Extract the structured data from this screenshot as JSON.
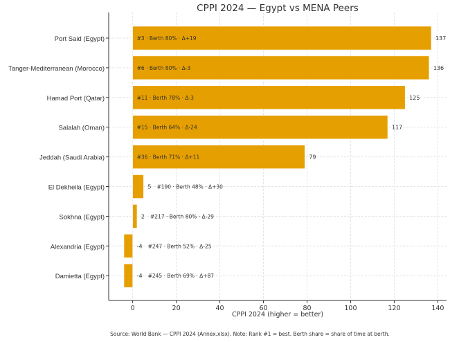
{
  "chart_data": {
    "type": "bar",
    "orientation": "horizontal",
    "title": "CPPI 2024 — Egypt vs MENA Peers",
    "xlabel": "CPPI 2024 (higher = better)",
    "ylabel": "",
    "xlim": [
      -11,
      144
    ],
    "xticks": [
      0,
      20,
      40,
      60,
      80,
      100,
      120,
      140
    ],
    "grid": true,
    "bar_color": "#E69F00",
    "categories": [
      "Port Said (Egypt)",
      "Tanger-Mediterranean (Morocco)",
      "Hamad Port (Qatar)",
      "Salalah (Oman)",
      "Jeddah (Saudi Arabia)",
      "El Dekheila (Egypt)",
      "Sokhna (Egypt)",
      "Alexandria (Egypt)",
      "Damietta (Egypt)"
    ],
    "values": [
      137,
      136,
      125,
      117,
      79,
      5,
      2,
      -4,
      -4
    ],
    "value_labels": [
      "137",
      "136",
      "125",
      "117",
      "79",
      "5",
      "2",
      "-4",
      "-4"
    ],
    "annotations": [
      "#3 · Berth 80% · Δ+19",
      "#6 · Berth 80% · Δ-3",
      "#11 · Berth 78% · Δ-3",
      "#15 · Berth 64% · Δ-24",
      "#36 · Berth 71% · Δ+11",
      "#190 · Berth 48% · Δ+30",
      "#217 · Berth 80% · Δ-29",
      "#247 · Berth 52% · Δ-25",
      "#245 · Berth 69% · Δ+87"
    ]
  },
  "footnote": "Source: World Bank — CPPI 2024 (Annex.xlsx). Note: Rank #1 = best. Berth share = share of time at berth."
}
